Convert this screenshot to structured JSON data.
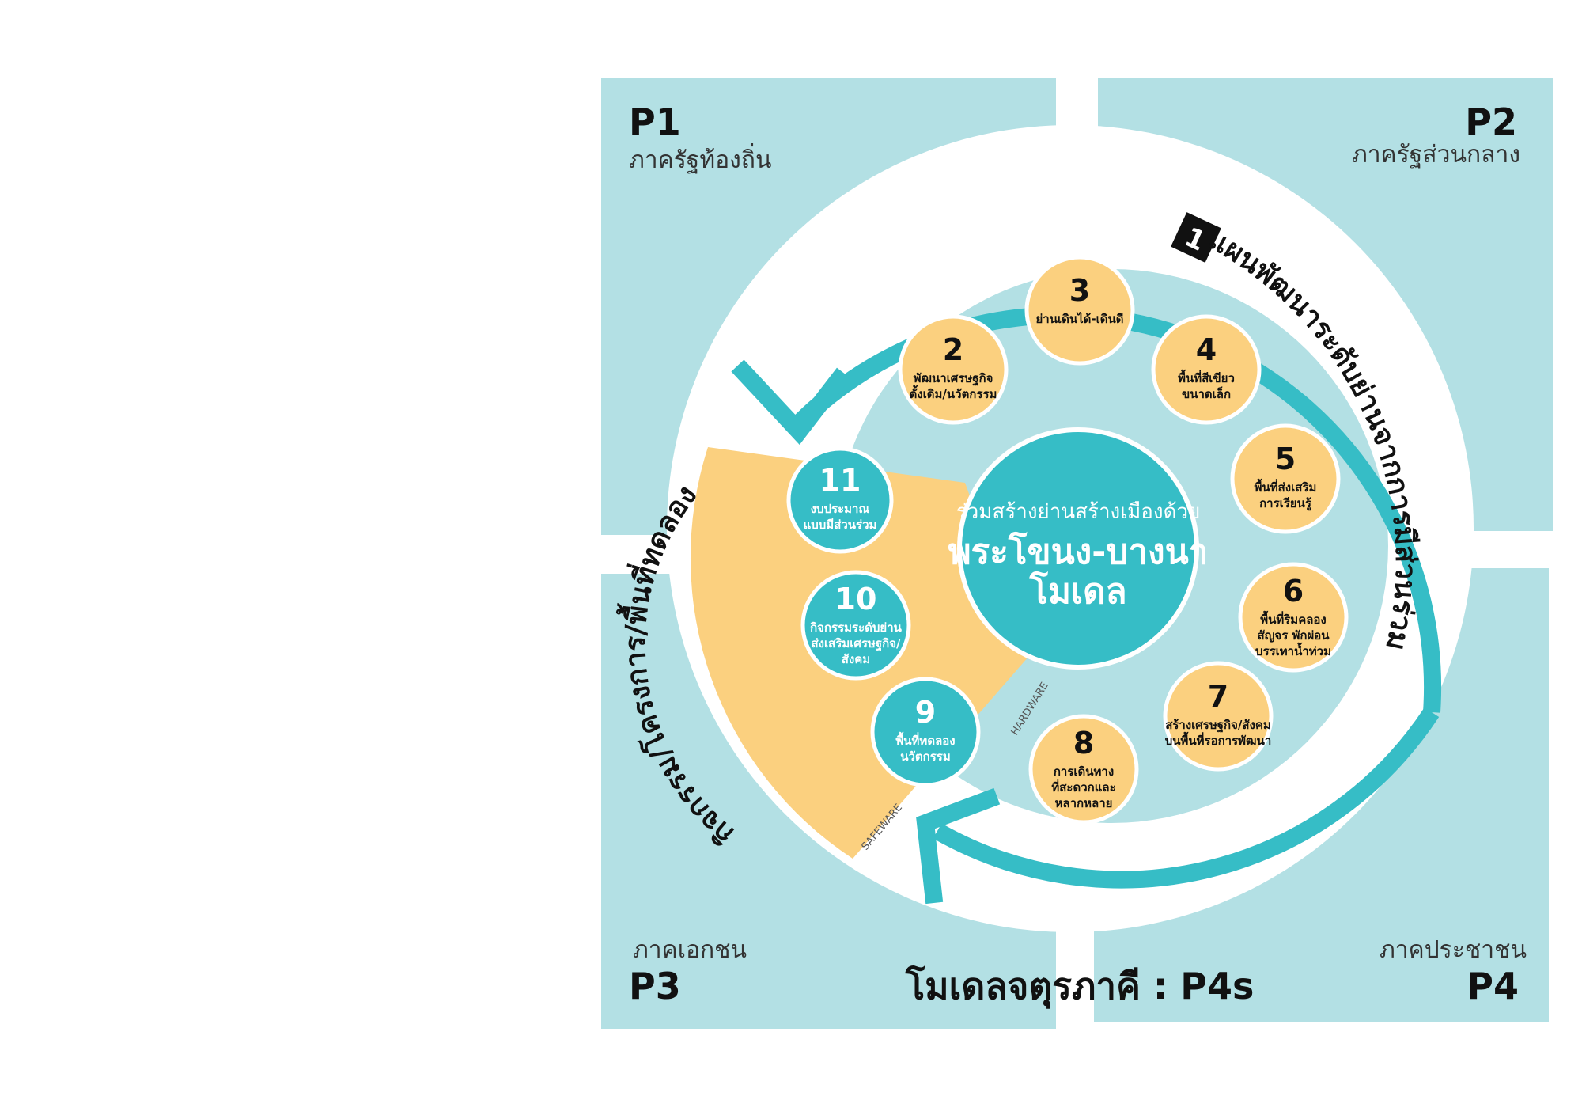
{
  "colors": {
    "quadrant": "#b3e0e4",
    "teal": "#36bdc6",
    "yellow": "#fbd07f",
    "white": "#ffffff",
    "dark": "#111111"
  },
  "quadrants": {
    "p1": {
      "code": "P1",
      "label": "ภาครัฐท้องถิ่น"
    },
    "p2": {
      "code": "P2",
      "label": "ภาครัฐส่วนกลาง"
    },
    "p3": {
      "code": "P3",
      "label": "ภาคเอกชน"
    },
    "p4": {
      "code": "P4",
      "label": "ภาคประชาชน"
    }
  },
  "arc_plan": {
    "badge": "1",
    "text": "แผนพัฒนาระดับย่านจากการมีส่วนร่วม"
  },
  "arc_software": {
    "text": "กิจกรรม/โครงการ/พื้นที่ทดลอง"
  },
  "tags": {
    "hardware": "HARDWARE",
    "safeware": "SAFEWARE"
  },
  "center": {
    "line1": "ร่วมสร้างย่านสร้างเมืองด้วย",
    "line2": "พระโขนง-บางนา",
    "line3": "โมเดล"
  },
  "yellow_nodes": [
    {
      "num": "2",
      "lines": [
        "พัฒนาเศรษฐกิจ",
        "ดั้งเดิม/นวัตกรรม"
      ]
    },
    {
      "num": "3",
      "lines": [
        "ย่านเดินได้-เดินดี"
      ]
    },
    {
      "num": "4",
      "lines": [
        "พื้นที่สีเขียว",
        "ขนาดเล็ก"
      ]
    },
    {
      "num": "5",
      "lines": [
        "พื้นที่ส่งเสริม",
        "การเรียนรู้"
      ]
    },
    {
      "num": "6",
      "lines": [
        "พื้นที่ริมคลอง",
        "สัญจร พักผ่อน",
        "บรรเทาน้ำท่วม"
      ]
    },
    {
      "num": "7",
      "lines": [
        "สร้างเศรษฐกิจ/สังคม",
        "บนพื้นที่รอการพัฒนา"
      ]
    },
    {
      "num": "8",
      "lines": [
        "การเดินทาง",
        "ที่สะดวกและ",
        "หลากหลาย"
      ]
    }
  ],
  "teal_nodes": [
    {
      "num": "9",
      "lines": [
        "พื้นที่ทดลอง",
        "นวัตกรรม"
      ]
    },
    {
      "num": "10",
      "lines": [
        "กิจกรรมระดับย่าน",
        "ส่งเสริมเศรษฐกิจ/",
        "สังคม"
      ]
    },
    {
      "num": "11",
      "lines": [
        "งบประมาณ",
        "แบบมีส่วนร่วม"
      ]
    }
  ],
  "caption": "โมเดลจตุรภาคี : P4s"
}
